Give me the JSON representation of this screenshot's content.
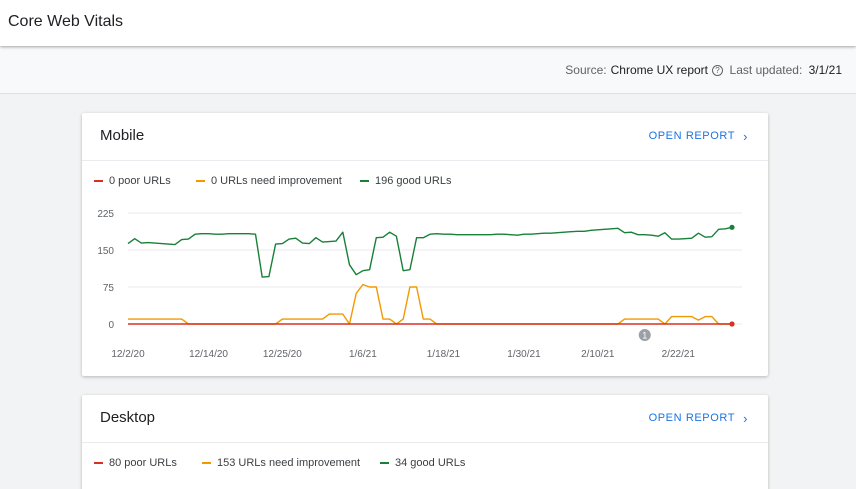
{
  "page": {
    "title": "Core Web Vitals"
  },
  "subbar": {
    "source_label": "Source:",
    "source_value": "Chrome UX report",
    "help_glyph": "?",
    "updated_label": "Last updated:",
    "updated_value": "3/1/21"
  },
  "colors": {
    "poor": "#d93025",
    "improve": "#f29900",
    "good": "#188038",
    "accent": "#1a73e8"
  },
  "mobile": {
    "name": "Mobile",
    "open_label": "OPEN REPORT",
    "legend": {
      "poor": "0 poor URLs",
      "improve": "0 URLs need improvement",
      "good": "196 good URLs"
    }
  },
  "desktop": {
    "name": "Desktop",
    "open_label": "OPEN REPORT",
    "legend": {
      "poor": "80 poor URLs",
      "improve": "153 URLs need improvement",
      "good": "34 good URLs"
    }
  },
  "chart_data": {
    "type": "line",
    "y_ticks": [
      0,
      75,
      150,
      225
    ],
    "ylim": [
      0,
      225
    ],
    "x_ticks": [
      "12/2/20",
      "12/14/20",
      "12/25/20",
      "1/6/21",
      "1/18/21",
      "1/30/21",
      "2/10/21",
      "2/22/21"
    ],
    "x_tick_index": [
      0,
      12,
      23,
      35,
      47,
      59,
      70,
      82
    ],
    "annotation": {
      "label": "1",
      "index": 77
    },
    "grid": true,
    "series": [
      {
        "name": "good",
        "values": [
          163,
          173,
          164,
          165,
          164,
          163,
          162,
          161,
          171,
          172,
          182,
          183,
          183,
          182,
          182,
          183,
          183,
          183,
          183,
          182,
          95,
          96,
          162,
          163,
          172,
          174,
          164,
          163,
          175,
          166,
          167,
          168,
          186,
          120,
          100,
          108,
          110,
          175,
          176,
          186,
          178,
          108,
          110,
          175,
          175,
          182,
          183,
          182,
          182,
          181,
          181,
          181,
          181,
          181,
          181,
          182,
          182,
          181,
          180,
          182,
          182,
          183,
          184,
          184,
          185,
          186,
          187,
          188,
          188,
          190,
          191,
          192,
          193,
          194,
          185,
          186,
          181,
          181,
          180,
          178,
          185,
          172,
          172,
          173,
          174,
          184,
          176,
          177,
          192,
          193,
          196
        ]
      },
      {
        "name": "improve",
        "values": [
          10,
          10,
          10,
          10,
          10,
          10,
          10,
          10,
          10,
          0,
          0,
          0,
          0,
          0,
          0,
          0,
          0,
          0,
          0,
          0,
          0,
          0,
          0,
          10,
          10,
          10,
          10,
          10,
          10,
          10,
          20,
          20,
          20,
          0,
          62,
          80,
          75,
          75,
          10,
          10,
          0,
          10,
          75,
          75,
          10,
          10,
          0,
          0,
          0,
          0,
          0,
          0,
          0,
          0,
          0,
          0,
          0,
          0,
          0,
          0,
          0,
          0,
          0,
          0,
          0,
          0,
          0,
          0,
          0,
          0,
          0,
          0,
          0,
          0,
          10,
          10,
          10,
          10,
          10,
          10,
          0,
          15,
          15,
          15,
          15,
          8,
          15,
          15,
          0,
          0,
          0
        ]
      },
      {
        "name": "poor",
        "values": [
          0,
          0,
          0,
          0,
          0,
          0,
          0,
          0,
          0,
          0,
          0,
          0,
          0,
          0,
          0,
          0,
          0,
          0,
          0,
          0,
          0,
          0,
          0,
          0,
          0,
          0,
          0,
          0,
          0,
          0,
          0,
          0,
          0,
          0,
          0,
          0,
          0,
          0,
          0,
          0,
          0,
          0,
          0,
          0,
          0,
          0,
          0,
          0,
          0,
          0,
          0,
          0,
          0,
          0,
          0,
          0,
          0,
          0,
          0,
          0,
          0,
          0,
          0,
          0,
          0,
          0,
          0,
          0,
          0,
          0,
          0,
          0,
          0,
          0,
          0,
          0,
          0,
          0,
          0,
          0,
          0,
          0,
          0,
          0,
          0,
          0,
          0,
          0,
          0,
          0,
          0
        ]
      }
    ]
  }
}
